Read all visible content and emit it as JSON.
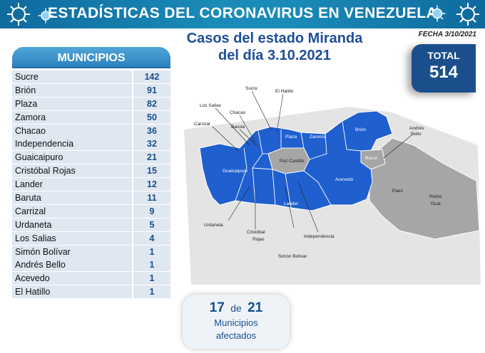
{
  "header": {
    "title": "ESTADÍSTICAS DEL CORONAVIRUS EN VENEZUELA"
  },
  "subtitle": {
    "line1": "Casos del estado Miranda",
    "line2": "del día 3.10.2021"
  },
  "date": "FECHA 3/10/2021",
  "total": {
    "label": "TOTAL",
    "value": "514"
  },
  "table": {
    "header": "MUNICIPIOS",
    "rows": [
      {
        "name": "Sucre",
        "value": "142"
      },
      {
        "name": "Brión",
        "value": "91"
      },
      {
        "name": "Plaza",
        "value": "82"
      },
      {
        "name": "Zamora",
        "value": "50"
      },
      {
        "name": "Chacao",
        "value": "36"
      },
      {
        "name": "Independencia",
        "value": "32"
      },
      {
        "name": "Guaicaipuro",
        "value": "21"
      },
      {
        "name": "Cristóbal Rojas",
        "value": "15"
      },
      {
        "name": "Lander",
        "value": "12"
      },
      {
        "name": "Baruta",
        "value": "11"
      },
      {
        "name": "Carrizal",
        "value": "9"
      },
      {
        "name": "Urdaneta",
        "value": "5"
      },
      {
        "name": "Los Salias",
        "value": "4"
      },
      {
        "name": "Simón Bolívar",
        "value": "1"
      },
      {
        "name": "Andrés Bello",
        "value": "1"
      },
      {
        "name": "Acevedo",
        "value": "1"
      },
      {
        "name": "El Hatillo",
        "value": "1"
      }
    ]
  },
  "summary": {
    "affected": "17",
    "connector": "de",
    "total": "21",
    "caption1": "Municipios",
    "caption2": "afectados"
  },
  "map": {
    "colors": {
      "affected": "#1f5fce",
      "unaffected": "#a6a6a6",
      "background": "#e4e4e4"
    },
    "labels": {
      "sucre": "Sucre",
      "el_hatillo": "El Hatillo",
      "los_salias": "Los Salias",
      "chacao": "Chacao",
      "carrizal": "Carrizal",
      "baruta": "Baruta",
      "plaza": "Plaza",
      "zamora": "Zamora",
      "brion": "Brión",
      "andres_bello_1": "Andrés",
      "andres_bello_2": "Bello",
      "guaicaipuro": "Guaicaipuro",
      "paz_castillo": "Paz Castillo",
      "buroz": "Buroz",
      "acevedo": "Acevedo",
      "paez": "Páez",
      "pedro_gual_1": "Pedro",
      "pedro_gual_2": "Gual",
      "lander": "Lander",
      "urdaneta": "Urdaneta",
      "cristobal_rojas_1": "Cristóbal",
      "cristobal_rojas_2": "Rojas",
      "independencia": "Independencia",
      "simon_bolivar": "Simón Bolívar"
    }
  }
}
